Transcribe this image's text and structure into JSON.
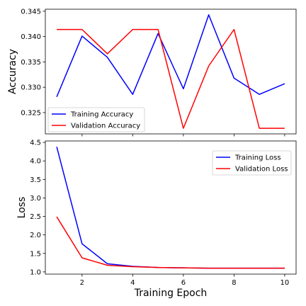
{
  "chart_data": [
    {
      "type": "line",
      "title": "",
      "xlabel": "",
      "ylabel": "Accuracy",
      "x": [
        1,
        2,
        3,
        4,
        5,
        6,
        7,
        8,
        9,
        10
      ],
      "xlim": [
        0.55,
        10.45
      ],
      "ylim": [
        0.3208,
        0.3454
      ],
      "x_ticks": [
        2,
        4,
        6,
        8,
        10
      ],
      "x_tick_labels_shown": false,
      "y_ticks": [
        0.325,
        0.33,
        0.335,
        0.34,
        0.345
      ],
      "y_tick_labels": [
        "0.325",
        "0.330",
        "0.335",
        "0.340",
        "0.345"
      ],
      "grid": false,
      "legend_position": "bottom-left",
      "series": [
        {
          "name": "Training Accuracy",
          "color": "#0000ff",
          "values": [
            0.3281,
            0.3401,
            0.3359,
            0.3286,
            0.3406,
            0.3297,
            0.3443,
            0.3318,
            0.3286,
            0.3307
          ]
        },
        {
          "name": "Validation Accuracy",
          "color": "#ff0000",
          "values": [
            0.3414,
            0.3414,
            0.3366,
            0.3414,
            0.3414,
            0.3219,
            0.3342,
            0.3414,
            0.3219,
            0.3219
          ]
        }
      ]
    },
    {
      "type": "line",
      "title": "",
      "xlabel": "Training Epoch",
      "ylabel": "Loss",
      "x": [
        1,
        2,
        3,
        4,
        5,
        6,
        7,
        8,
        9,
        10
      ],
      "xlim": [
        0.55,
        10.45
      ],
      "ylim": [
        0.94,
        4.54
      ],
      "x_ticks": [
        2,
        4,
        6,
        8,
        10
      ],
      "x_tick_labels": [
        "2",
        "4",
        "6",
        "8",
        "10"
      ],
      "y_ticks": [
        1.0,
        1.5,
        2.0,
        2.5,
        3.0,
        3.5,
        4.0,
        4.5
      ],
      "y_tick_labels": [
        "1.0",
        "1.5",
        "2.0",
        "2.5",
        "3.0",
        "3.5",
        "4.0",
        "4.5"
      ],
      "grid": false,
      "legend_position": "top-right",
      "series": [
        {
          "name": "Training Loss",
          "color": "#0000ff",
          "values": [
            4.38,
            1.76,
            1.22,
            1.15,
            1.12,
            1.11,
            1.1,
            1.1,
            1.1,
            1.1
          ]
        },
        {
          "name": "Validation Loss",
          "color": "#ff0000",
          "values": [
            2.49,
            1.38,
            1.18,
            1.14,
            1.12,
            1.11,
            1.1,
            1.1,
            1.1,
            1.1
          ]
        }
      ]
    }
  ]
}
